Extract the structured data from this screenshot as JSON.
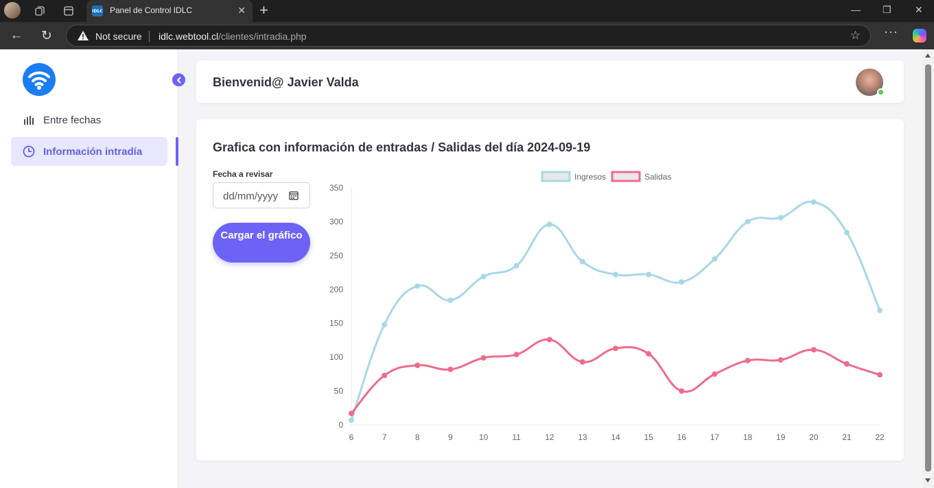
{
  "browser": {
    "tab_title": "Panel de Control IDLC",
    "tab_favicon_text": "IDLC",
    "security_label": "Not secure",
    "url_host": "idlc.webtool.cl",
    "url_path": "/clientes/intradia.php"
  },
  "sidebar": {
    "items": [
      {
        "label": "Entre fechas",
        "icon": "bar-chart-icon",
        "active": false
      },
      {
        "label": "Información intradía",
        "icon": "clock-icon",
        "active": true
      }
    ]
  },
  "header": {
    "welcome": "Bienvenid@ Javier Valda"
  },
  "main": {
    "title": "Grafica con información de entradas / Salidas del día 2024-09-19",
    "date_label": "Fecha a revisar",
    "date_placeholder": "dd/mm/yyyy",
    "load_button": "Cargar el gráfico"
  },
  "colors": {
    "accent": "#6c63f5",
    "ingresos": "#a8d8e6",
    "salidas": "#ef6b8a"
  },
  "chart_data": {
    "type": "line",
    "title": "",
    "xlabel": "",
    "ylabel": "",
    "categories": [
      "6",
      "7",
      "8",
      "9",
      "10",
      "11",
      "12",
      "13",
      "14",
      "15",
      "16",
      "17",
      "18",
      "19",
      "20",
      "21",
      "22"
    ],
    "ylim": [
      0,
      350
    ],
    "yticks": [
      0,
      50,
      100,
      150,
      200,
      250,
      300,
      350
    ],
    "legend_position": "top",
    "series": [
      {
        "name": "Ingresos",
        "color": "#a8d8e6",
        "values": [
          7,
          148,
          205,
          184,
          219,
          235,
          296,
          241,
          222,
          222,
          211,
          245,
          300,
          306,
          329,
          284,
          169
        ]
      },
      {
        "name": "Salidas",
        "color": "#ef6b8a",
        "values": [
          17,
          73,
          88,
          82,
          99,
          104,
          126,
          93,
          113,
          105,
          50,
          75,
          95,
          96,
          111,
          90,
          74
        ]
      }
    ]
  }
}
